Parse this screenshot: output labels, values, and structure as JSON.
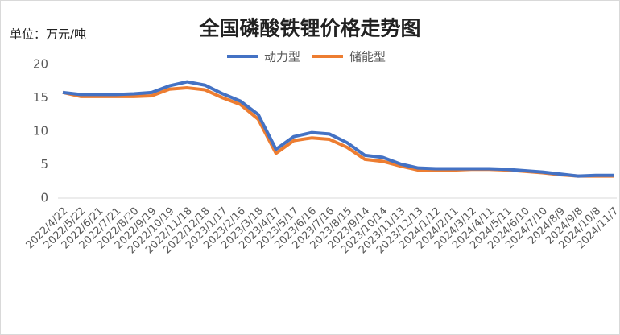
{
  "chart_data": {
    "type": "line",
    "title": "全国磷酸铁锂价格走势图",
    "unit_label": "单位：万元/吨",
    "categories": [
      "2022/4/22",
      "2022/5/22",
      "2022/6/21",
      "2022/7/21",
      "2022/8/20",
      "2022/9/19",
      "2022/10/19",
      "2022/11/18",
      "2022/12/18",
      "2023/1/17",
      "2023/2/16",
      "2023/3/18",
      "2023/4/17",
      "2023/5/17",
      "2023/6/16",
      "2023/7/16",
      "2023/8/15",
      "2023/9/14",
      "2023/10/14",
      "2023/11/13",
      "2023/12/13",
      "2024/1/12",
      "2024/2/11",
      "2024/3/12",
      "2024/4/11",
      "2024/5/11",
      "2024/6/10",
      "2024/7/10",
      "2024/8/9",
      "2024/9/8",
      "2024/10/8",
      "2024/11/7"
    ],
    "series": [
      {
        "name": "动力型",
        "color": "#4472c4",
        "values": [
          15.8,
          15.5,
          15.5,
          15.5,
          15.6,
          15.8,
          16.8,
          17.4,
          16.9,
          15.6,
          14.5,
          12.5,
          7.3,
          9.2,
          9.8,
          9.6,
          8.3,
          6.4,
          6.1,
          5.1,
          4.5,
          4.4,
          4.4,
          4.4,
          4.4,
          4.3,
          4.1,
          3.9,
          3.6,
          3.3,
          3.4,
          3.4
        ]
      },
      {
        "name": "储能型",
        "color": "#ed7d31",
        "values": [
          15.8,
          15.2,
          15.2,
          15.2,
          15.2,
          15.3,
          16.3,
          16.5,
          16.2,
          15.0,
          14.0,
          11.8,
          6.7,
          8.6,
          9.0,
          8.8,
          7.6,
          5.8,
          5.5,
          4.8,
          4.2,
          4.2,
          4.2,
          4.3,
          4.3,
          4.2,
          4.0,
          3.8,
          3.5,
          3.3,
          3.3,
          3.3
        ]
      }
    ],
    "ylim": [
      0,
      20
    ],
    "yticks": [
      0,
      5,
      10,
      15,
      20
    ],
    "grid": false,
    "legend": "top"
  }
}
